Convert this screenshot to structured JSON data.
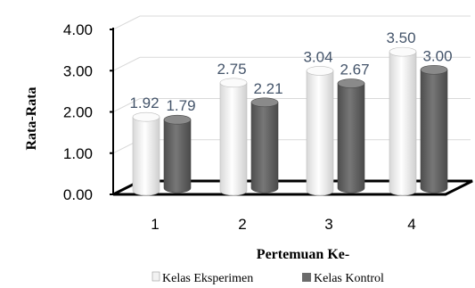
{
  "chart_data": {
    "type": "bar",
    "categories": [
      "1",
      "2",
      "3",
      "4"
    ],
    "series": [
      {
        "name": "Kelas Eksperimen",
        "values": [
          1.92,
          2.75,
          3.04,
          3.5
        ],
        "labels": [
          "1.92",
          "2.75",
          "3.04",
          "3.50"
        ]
      },
      {
        "name": "Kelas Kontrol",
        "values": [
          1.79,
          2.21,
          2.67,
          3.0
        ],
        "labels": [
          "1.79",
          "2.21",
          "2.67",
          "3.00"
        ]
      }
    ],
    "xlabel": "Pertemuan Ke-",
    "ylabel": "Rata-Rata",
    "ylim": [
      0,
      4
    ],
    "yticks": [
      "0.00",
      "1.00",
      "2.00",
      "3.00",
      "4.00"
    ],
    "grid": true,
    "legend": "bottom",
    "colors": {
      "series1": "#f2f2f2",
      "series2": "#6b6b6b",
      "label": "#44546a"
    }
  }
}
